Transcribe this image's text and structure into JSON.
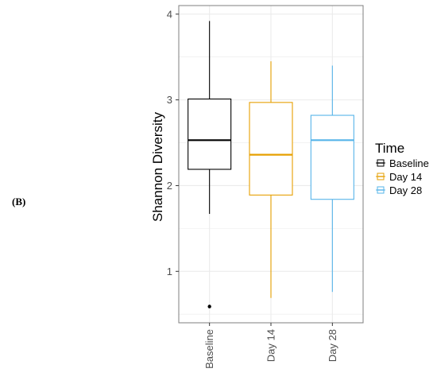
{
  "panel_label": "(B)",
  "colors": {
    "Baseline": "#000000",
    "Day 14": "#E69F00",
    "Day 28": "#56B4E9",
    "grid": "#ebebeb",
    "panel_border": "#7f7f7f"
  },
  "chart_data": {
    "type": "box",
    "title": "",
    "xlabel": "",
    "ylabel": "Shannon Diversity",
    "categories": [
      "Baseline",
      "Day 14",
      "Day 28"
    ],
    "y_ticks": [
      "1",
      "2",
      "3",
      "4"
    ],
    "ylim": [
      0.4,
      4.1
    ],
    "grid": true,
    "legend": {
      "title": "Time",
      "position": "right",
      "entries": [
        "Baseline",
        "Day 14",
        "Day 28"
      ]
    },
    "series": [
      {
        "name": "Baseline",
        "min": 1.67,
        "q1": 2.19,
        "median": 2.53,
        "q3": 3.01,
        "max": 3.92,
        "outliers": [
          0.59
        ]
      },
      {
        "name": "Day 14",
        "min": 0.69,
        "q1": 1.89,
        "median": 2.36,
        "q3": 2.97,
        "max": 3.45,
        "outliers": []
      },
      {
        "name": "Day 28",
        "min": 0.76,
        "q1": 1.84,
        "median": 2.53,
        "q3": 2.82,
        "max": 3.4,
        "outliers": []
      }
    ]
  }
}
